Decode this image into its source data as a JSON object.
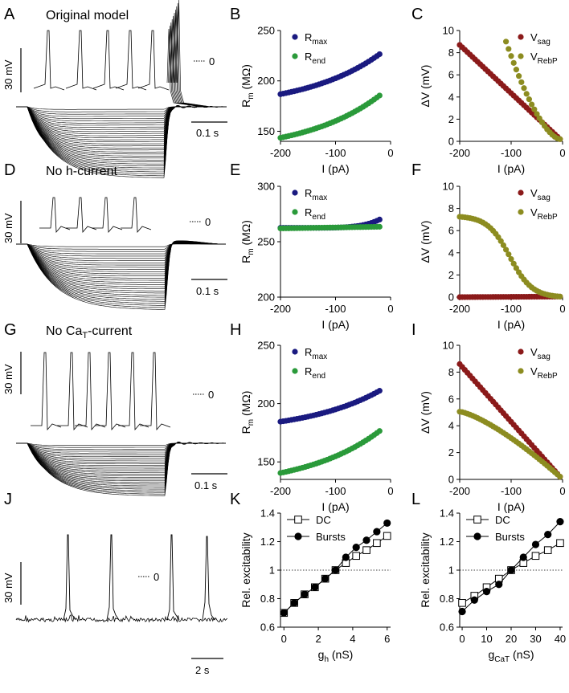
{
  "panel_letters": [
    "A",
    "B",
    "C",
    "D",
    "E",
    "F",
    "G",
    "H",
    "I",
    "J",
    "K",
    "L"
  ],
  "traces": [
    {
      "id": "A",
      "title": "Original model",
      "scale_v": "30 mV",
      "scale_t": "0.1 s",
      "zero": "0",
      "spikes": 5,
      "rebound": "burst"
    },
    {
      "id": "D",
      "title": "No h-current",
      "scale_v": "30 mV",
      "scale_t": "0.1 s",
      "zero": "0",
      "spikes": 4,
      "rebound": "slow"
    },
    {
      "id": "G",
      "title_prefix": "No Ca",
      "title_sub": "T",
      "title_suffix": "-current",
      "scale_v": "30 mV",
      "scale_t": "0.1 s",
      "zero": "0",
      "spikes": 6,
      "rebound": "osc"
    },
    {
      "id": "J",
      "title": "",
      "scale_v": "30 mV",
      "scale_t": "2 s",
      "zero": "0",
      "spikes": 4
    }
  ],
  "legend_text": {
    "rmax_main": "R",
    "rmax_sub": "max",
    "rend_main": "R",
    "rend_sub": "end",
    "vsag_main": "V",
    "vsag_sub": "sag",
    "vrebp_main": "V",
    "vrebp_sub": "RebP",
    "dc": "DC",
    "bursts": "Bursts"
  },
  "colors": {
    "rmax": "#1a1a80",
    "rend": "#2a9a3a",
    "vsag": "#8b1a1a",
    "vrebp": "#8c8c20"
  },
  "chart_data": [
    {
      "id": "B",
      "type": "scatter",
      "xlabel": "I (pA)",
      "ylabel": "R",
      "ylabel_sub": "m",
      "ylabel_unit": " (MΩ)",
      "xlim": [
        -200,
        0
      ],
      "xticks": [
        -200,
        -100,
        0
      ],
      "ylim": [
        140,
        250
      ],
      "yticks": [
        150,
        200,
        250
      ],
      "series": [
        {
          "name": "Rmax",
          "key": "rmax",
          "x_start": -200,
          "x_end": -20,
          "x_step": 5,
          "model": "exp",
          "y0": 186.8,
          "y1": 226.5
        },
        {
          "name": "Rend",
          "key": "rend",
          "x_start": -200,
          "x_end": -20,
          "x_step": 5,
          "model": "exp",
          "y0": 143.5,
          "y1": 185.5
        }
      ]
    },
    {
      "id": "C",
      "type": "scatter",
      "xlabel": "I (pA)",
      "ylabel": "ΔV (mV)",
      "xlim": [
        -200,
        0
      ],
      "xticks": [
        -200,
        -100,
        0
      ],
      "ylim": [
        0,
        10
      ],
      "yticks": [
        0,
        2,
        4,
        6,
        8,
        10
      ],
      "series": [
        {
          "name": "Vsag",
          "key": "vsag",
          "x_start": -200,
          "x_end": -5,
          "x_step": 5,
          "model": "lin",
          "y0": 8.7,
          "y1": 0.2
        },
        {
          "name": "VRebP",
          "key": "vrebp",
          "x_start": -110,
          "x_end": -5,
          "x_step": 5,
          "model": "conv",
          "y0": 9.0,
          "y1": 0.2
        }
      ]
    },
    {
      "id": "E",
      "type": "scatter",
      "xlabel": "I (pA)",
      "ylabel": "R",
      "ylabel_sub": "m",
      "ylabel_unit": " (MΩ)",
      "xlim": [
        -200,
        0
      ],
      "xticks": [
        -200,
        -100,
        0
      ],
      "ylim": [
        200,
        300
      ],
      "yticks": [
        200,
        250,
        300
      ],
      "series": [
        {
          "name": "Rmax",
          "key": "rmax",
          "x_start": -200,
          "x_end": -20,
          "x_step": 5,
          "model": "tail",
          "y0": 262.5,
          "y1": 270.0
        },
        {
          "name": "Rend",
          "key": "rend",
          "x_start": -200,
          "x_end": -20,
          "x_step": 5,
          "model": "lin",
          "y0": 262.0,
          "y1": 263.5
        }
      ]
    },
    {
      "id": "F",
      "type": "scatter",
      "xlabel": "I (pA)",
      "ylabel": "ΔV (mV)",
      "xlim": [
        -200,
        0
      ],
      "xticks": [
        -200,
        -100,
        0
      ],
      "ylim": [
        0,
        10
      ],
      "yticks": [
        0,
        2,
        4,
        6,
        8,
        10
      ],
      "series": [
        {
          "name": "Vsag",
          "key": "vsag",
          "x_start": -200,
          "x_end": -5,
          "x_step": 5,
          "model": "lin",
          "y0": 0.0,
          "y1": 0.05
        },
        {
          "name": "VRebP",
          "key": "vrebp",
          "x_start": -200,
          "x_end": -5,
          "x_step": 5,
          "model": "sigm",
          "y0": 7.25,
          "y1": 0.05
        }
      ]
    },
    {
      "id": "H",
      "type": "scatter",
      "xlabel": "I (pA)",
      "ylabel": "R",
      "ylabel_sub": "m",
      "ylabel_unit": " (MΩ)",
      "xlim": [
        -200,
        0
      ],
      "xticks": [
        -200,
        -100,
        0
      ],
      "ylim": [
        135,
        250
      ],
      "yticks": [
        150,
        200,
        250
      ],
      "series": [
        {
          "name": "Rmax",
          "key": "rmax",
          "x_start": -200,
          "x_end": -20,
          "x_step": 5,
          "model": "exp",
          "y0": 184.5,
          "y1": 211.0
        },
        {
          "name": "Rend",
          "key": "rend",
          "x_start": -200,
          "x_end": -20,
          "x_step": 5,
          "model": "exp",
          "y0": 140.5,
          "y1": 176.5
        }
      ]
    },
    {
      "id": "I",
      "type": "scatter",
      "xlabel": "I (pA)",
      "ylabel": "ΔV (mV)",
      "xlim": [
        -200,
        0
      ],
      "xticks": [
        -200,
        -100,
        0
      ],
      "ylim": [
        0,
        10
      ],
      "yticks": [
        0,
        2,
        4,
        6,
        8,
        10
      ],
      "series": [
        {
          "name": "Vsag",
          "key": "vsag",
          "x_start": -200,
          "x_end": -5,
          "x_step": 5,
          "model": "lin",
          "y0": 8.6,
          "y1": 0.2
        },
        {
          "name": "VRebP",
          "key": "vrebp",
          "x_start": -200,
          "x_end": -5,
          "x_step": 5,
          "model": "conc",
          "y0": 5.05,
          "y1": 0.2
        }
      ]
    },
    {
      "id": "K",
      "type": "line",
      "xlabel": "g",
      "xlabel_sub": "h",
      "xlabel_unit": " (nS)",
      "ylabel": "Rel. excitability",
      "xlim": [
        -0.2,
        6.2
      ],
      "xticks": [
        0,
        2,
        4,
        6
      ],
      "ylim": [
        0.6,
        1.4
      ],
      "yticks": [
        0.6,
        0.8,
        1.0,
        1.2,
        1.4
      ],
      "refline": 1.0,
      "series": [
        {
          "name": "DC",
          "key": "dc",
          "x": [
            0,
            0.6,
            1.2,
            1.8,
            2.4,
            3.0,
            3.6,
            4.2,
            4.8,
            5.4,
            6.0
          ],
          "y": [
            0.7,
            0.77,
            0.83,
            0.88,
            0.94,
            1.0,
            1.05,
            1.1,
            1.14,
            1.19,
            1.24
          ]
        },
        {
          "name": "Bursts",
          "key": "bursts",
          "x": [
            0,
            0.6,
            1.2,
            1.8,
            2.4,
            3.0,
            3.6,
            4.2,
            4.8,
            5.4,
            6.0
          ],
          "y": [
            0.7,
            0.77,
            0.83,
            0.88,
            0.94,
            1.0,
            1.09,
            1.16,
            1.21,
            1.27,
            1.33
          ]
        }
      ]
    },
    {
      "id": "L",
      "type": "line",
      "xlabel": "g",
      "xlabel_sub": "CaT",
      "xlabel_unit": " (nS)",
      "ylabel": "Rel. excitability",
      "xlim": [
        -1,
        41
      ],
      "xticks": [
        0,
        10,
        20,
        30,
        40
      ],
      "ylim": [
        0.6,
        1.4
      ],
      "yticks": [
        0.6,
        0.8,
        1.0,
        1.2,
        1.4
      ],
      "refline": 1.0,
      "series": [
        {
          "name": "DC",
          "key": "dc",
          "x": [
            0,
            5,
            10,
            15,
            20,
            25,
            30,
            35,
            40
          ],
          "y": [
            0.77,
            0.82,
            0.88,
            0.94,
            1.0,
            1.05,
            1.1,
            1.14,
            1.19
          ]
        },
        {
          "name": "Bursts",
          "key": "bursts",
          "x": [
            0,
            5,
            10,
            15,
            20,
            25,
            30,
            35,
            40
          ],
          "y": [
            0.71,
            0.79,
            0.85,
            0.9,
            1.0,
            1.09,
            1.18,
            1.25,
            1.34
          ]
        }
      ]
    }
  ]
}
